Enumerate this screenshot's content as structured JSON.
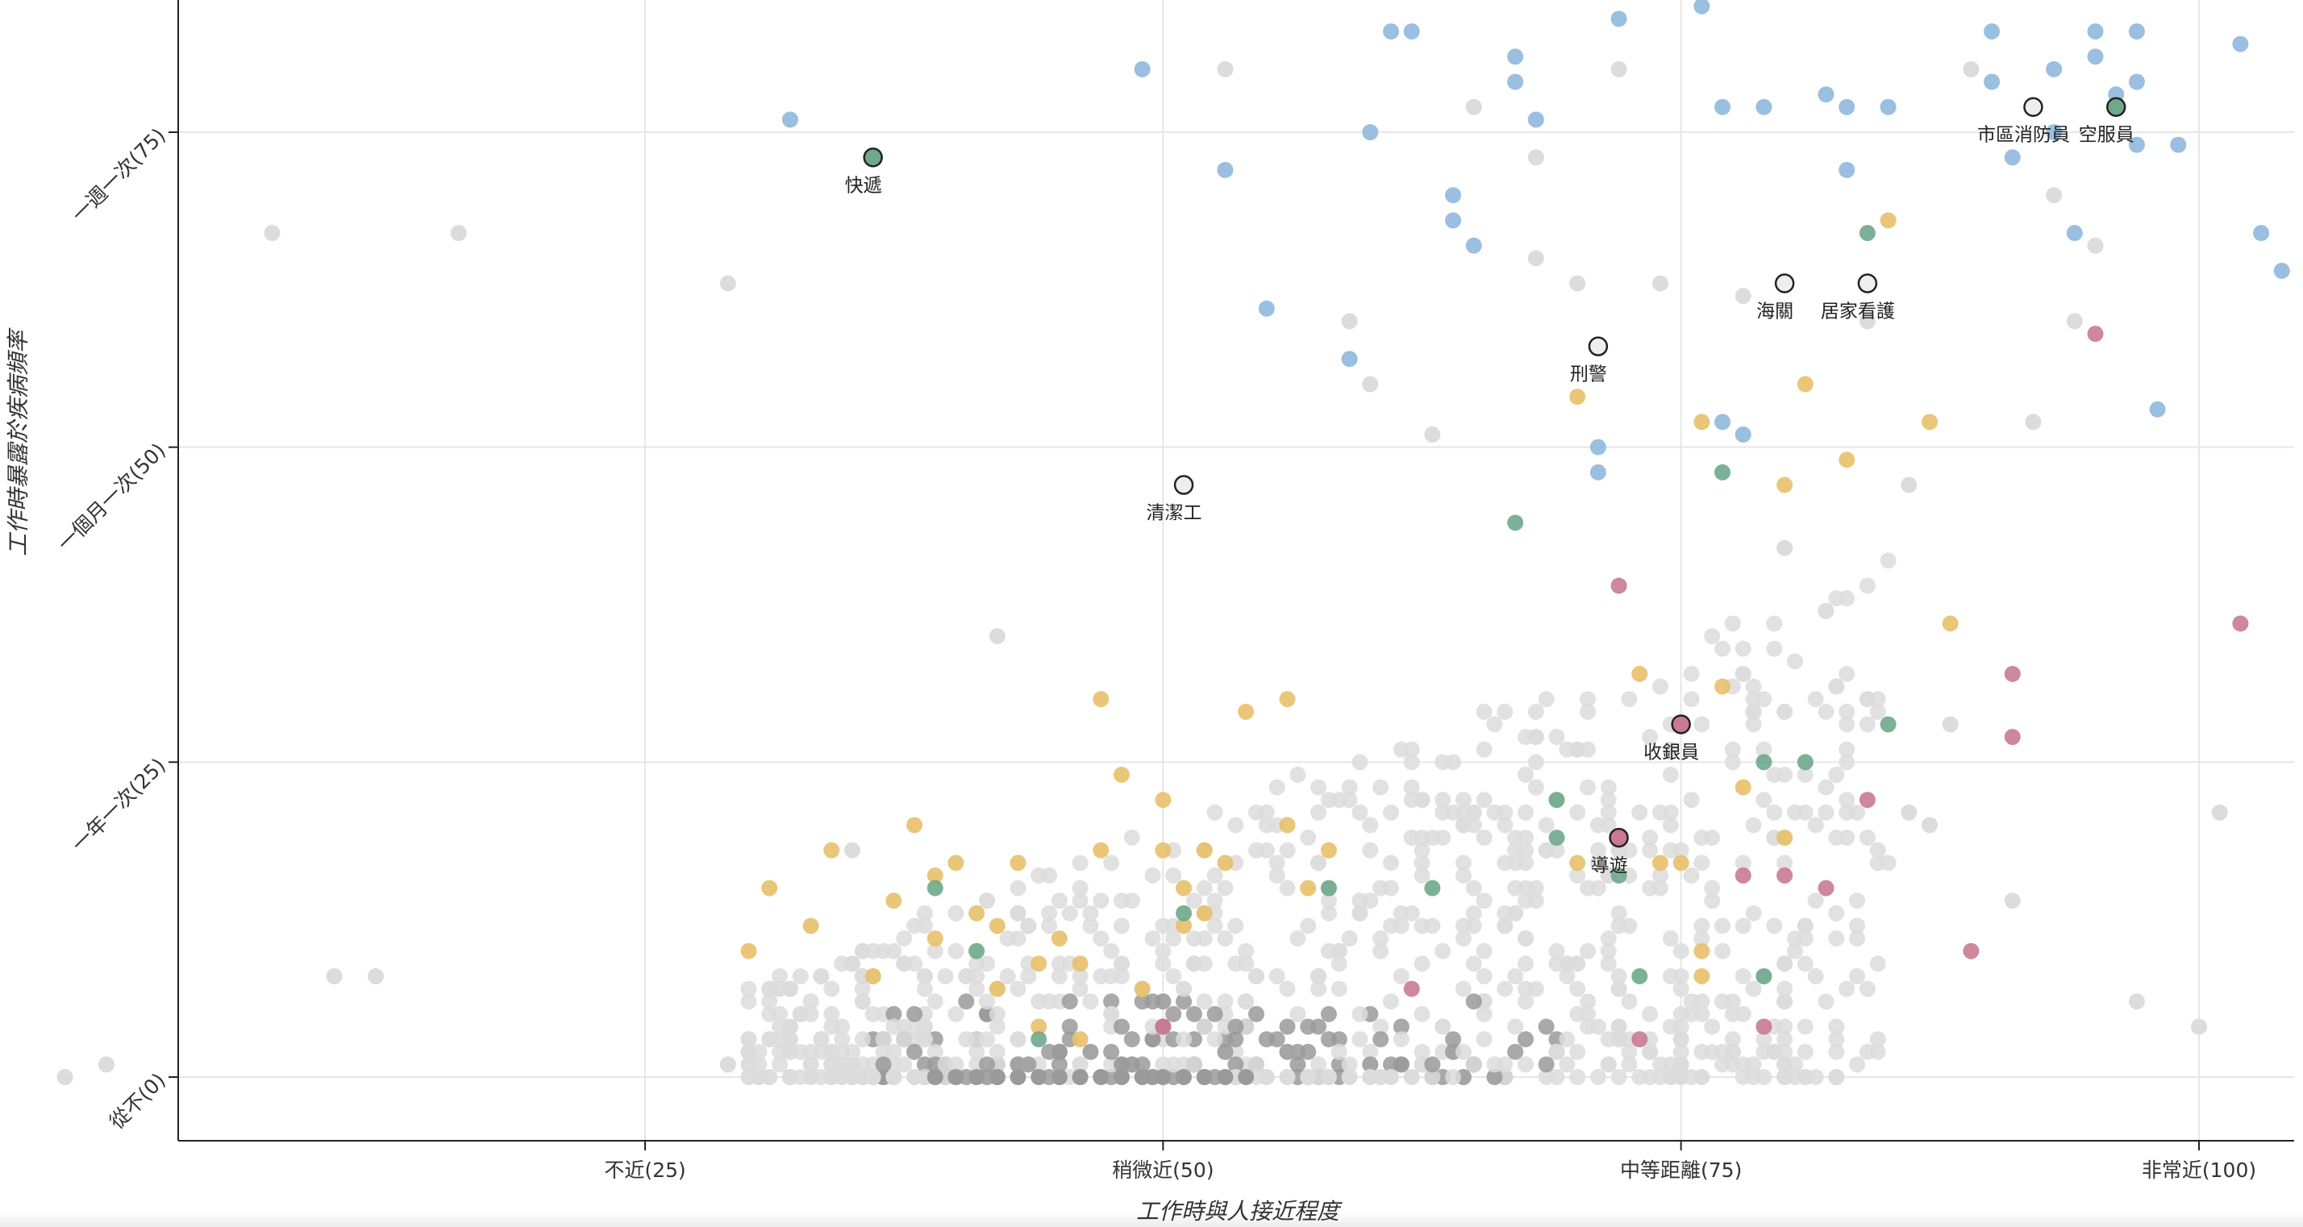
{
  "chart_data": {
    "type": "scatter",
    "xlabel": "工作時與人接近程度",
    "ylabel": "工作時暴露於疾病頻率",
    "xlim": [
      -12,
      104
    ],
    "ylim": [
      -5,
      86
    ],
    "grid": true,
    "x_ticks": [
      {
        "value": 25,
        "label": "不近(25)"
      },
      {
        "value": 50,
        "label": "稍微近(50)"
      },
      {
        "value": 75,
        "label": "中等距離(75)"
      },
      {
        "value": 100,
        "label": "非常近(100)"
      }
    ],
    "y_ticks": [
      {
        "value": 0,
        "label": "從不(0)"
      },
      {
        "value": 25,
        "label": "一年一次(25)"
      },
      {
        "value": 50,
        "label": "一個月一次(50)"
      },
      {
        "value": 75,
        "label": "一週一次(75)"
      }
    ],
    "colors": {
      "light": "#dcdcdc",
      "dark": "#9a9a9a",
      "blue": "#8fb8dd",
      "yellow": "#e8c06a",
      "green": "#6fa88c",
      "pink": "#c97a90"
    },
    "highlighted": [
      {
        "label": "快遞",
        "x": 36,
        "y": 73,
        "color": "#6fa88c"
      },
      {
        "label": "清潔工",
        "x": 51,
        "y": 47,
        "color": "#eeeeee"
      },
      {
        "label": "刑警",
        "x": 71,
        "y": 58,
        "color": "#eeeeee"
      },
      {
        "label": "海關",
        "x": 80,
        "y": 63,
        "color": "#eeeeee"
      },
      {
        "label": "居家看護",
        "x": 84,
        "y": 63,
        "color": "#eeeeee"
      },
      {
        "label": "市區消防員",
        "x": 92,
        "y": 77,
        "color": "#eeeeee"
      },
      {
        "label": "空服員",
        "x": 96,
        "y": 77,
        "color": "#6fa88c"
      },
      {
        "label": "收銀員",
        "x": 75,
        "y": 28,
        "color": "#c97a90"
      },
      {
        "label": "導遊",
        "x": 72,
        "y": 19,
        "color": "#c97a90"
      }
    ],
    "series": [
      {
        "group": "blue",
        "color": "#8fb8dd",
        "points": [
          [
            32,
            76
          ],
          [
            49,
            80
          ],
          [
            53,
            72
          ],
          [
            55,
            61
          ],
          [
            59,
            57
          ],
          [
            60,
            75
          ],
          [
            61,
            83
          ],
          [
            62,
            83
          ],
          [
            64,
            70
          ],
          [
            64,
            68
          ],
          [
            65,
            66
          ],
          [
            67,
            81
          ],
          [
            67,
            79
          ],
          [
            68,
            76
          ],
          [
            71,
            50
          ],
          [
            71,
            48
          ],
          [
            72,
            84
          ],
          [
            76,
            85
          ],
          [
            77,
            77
          ],
          [
            77,
            52
          ],
          [
            79,
            77
          ],
          [
            78,
            51
          ],
          [
            82,
            78
          ],
          [
            83,
            77
          ],
          [
            83,
            72
          ],
          [
            85,
            77
          ],
          [
            90,
            83
          ],
          [
            90,
            79
          ],
          [
            91,
            73
          ],
          [
            93,
            80
          ],
          [
            93,
            75
          ],
          [
            94,
            67
          ],
          [
            95,
            81
          ],
          [
            95,
            83
          ],
          [
            96,
            78
          ],
          [
            97,
            83
          ],
          [
            97,
            79
          ],
          [
            97,
            74
          ],
          [
            99,
            74
          ],
          [
            102,
            82
          ],
          [
            103,
            67
          ],
          [
            104,
            64
          ],
          [
            98,
            53
          ]
        ]
      },
      {
        "group": "yellow",
        "color": "#e8c06a",
        "points": [
          [
            30,
            10
          ],
          [
            31,
            15
          ],
          [
            33,
            12
          ],
          [
            34,
            18
          ],
          [
            36,
            8
          ],
          [
            37,
            14
          ],
          [
            38,
            20
          ],
          [
            39,
            16
          ],
          [
            39,
            11
          ],
          [
            40,
            17
          ],
          [
            41,
            13
          ],
          [
            42,
            12
          ],
          [
            42,
            7
          ],
          [
            43,
            17
          ],
          [
            44,
            9
          ],
          [
            44,
            4
          ],
          [
            45,
            11
          ],
          [
            46,
            9
          ],
          [
            46,
            3
          ],
          [
            47,
            30
          ],
          [
            47,
            18
          ],
          [
            48,
            24
          ],
          [
            49,
            7
          ],
          [
            50,
            18
          ],
          [
            50,
            22
          ],
          [
            51,
            12
          ],
          [
            51,
            15
          ],
          [
            52,
            18
          ],
          [
            52,
            13
          ],
          [
            53,
            17
          ],
          [
            54,
            29
          ],
          [
            56,
            30
          ],
          [
            56,
            20
          ],
          [
            57,
            15
          ],
          [
            58,
            18
          ],
          [
            70,
            54
          ],
          [
            70,
            17
          ],
          [
            73,
            32
          ],
          [
            74,
            17
          ],
          [
            75,
            17
          ],
          [
            76,
            52
          ],
          [
            76,
            10
          ],
          [
            76,
            8
          ],
          [
            77,
            31
          ],
          [
            78,
            23
          ],
          [
            80,
            47
          ],
          [
            80,
            19
          ],
          [
            81,
            55
          ],
          [
            83,
            49
          ],
          [
            85,
            68
          ],
          [
            87,
            52
          ],
          [
            88,
            36
          ]
        ]
      },
      {
        "group": "green",
        "color": "#6fa88c",
        "points": [
          [
            39,
            15
          ],
          [
            41,
            10
          ],
          [
            44,
            3
          ],
          [
            51,
            13
          ],
          [
            58,
            15
          ],
          [
            63,
            15
          ],
          [
            67,
            44
          ],
          [
            69,
            22
          ],
          [
            69,
            19
          ],
          [
            72,
            16
          ],
          [
            73,
            8
          ],
          [
            77,
            48
          ],
          [
            79,
            25
          ],
          [
            79,
            8
          ],
          [
            81,
            25
          ],
          [
            84,
            67
          ],
          [
            85,
            28
          ]
        ]
      },
      {
        "group": "pink",
        "color": "#c97a90",
        "points": [
          [
            50,
            4
          ],
          [
            62,
            7
          ],
          [
            72,
            39
          ],
          [
            73,
            3
          ],
          [
            78,
            16
          ],
          [
            79,
            4
          ],
          [
            80,
            16
          ],
          [
            82,
            15
          ],
          [
            84,
            22
          ],
          [
            89,
            10
          ],
          [
            91,
            27
          ],
          [
            91,
            32
          ],
          [
            95,
            59
          ],
          [
            102,
            36
          ]
        ]
      }
    ]
  }
}
